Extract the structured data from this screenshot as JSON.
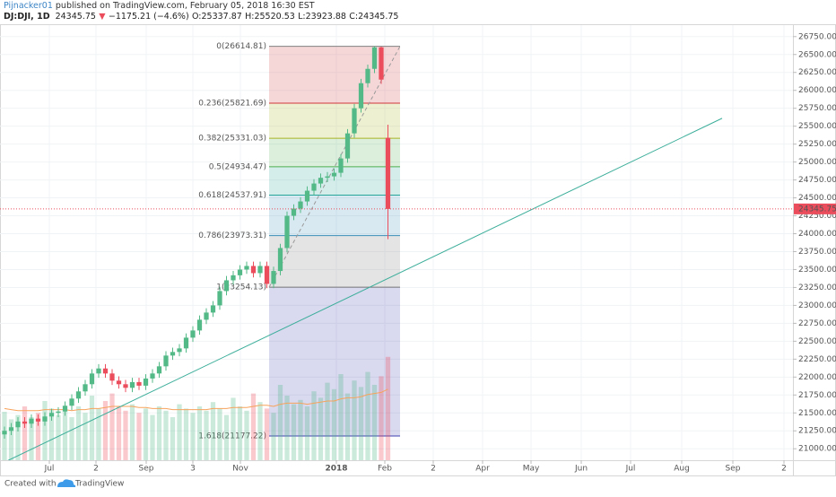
{
  "header": {
    "author": "Pijnacker01",
    "published": "published on TradingView.com, February 05, 2018 16:30 EST",
    "symbol": "DJ:DJI, 1D",
    "last": "24345.75",
    "arrow": "▼",
    "change": "−1175.21 (−4.6%)",
    "ohlc": [
      "O:25337.87",
      "H:25520.53",
      "L:23923.88",
      "C:24345.75"
    ]
  },
  "chart_data": {
    "type": "candlestick",
    "x": [
      0,
      3,
      6,
      9,
      12,
      15,
      18,
      21,
      24,
      27,
      30,
      33,
      36,
      39,
      42,
      45,
      48,
      51,
      54,
      57,
      60,
      63,
      66,
      69,
      72,
      75,
      78,
      81,
      84,
      87,
      90,
      93,
      96,
      99,
      102,
      105,
      108,
      111,
      114,
      117,
      120,
      123,
      126,
      129,
      132,
      135,
      138,
      141,
      144,
      147,
      150,
      153,
      156,
      159,
      162,
      165,
      168,
      171
    ],
    "open": [
      21200,
      21250,
      21300,
      21380,
      21350,
      21420,
      21380,
      21450,
      21500,
      21520,
      21600,
      21700,
      21800,
      21900,
      22050,
      22120,
      22050,
      21950,
      21900,
      21850,
      21930,
      21880,
      21980,
      22050,
      22150,
      22300,
      22350,
      22400,
      22550,
      22650,
      22800,
      22900,
      23000,
      23200,
      23350,
      23420,
      23500,
      23550,
      23450,
      23550,
      23300,
      23480,
      23800,
      24250,
      24350,
      24450,
      24600,
      24700,
      24780,
      24800,
      24850,
      25050,
      25400,
      25750,
      26100,
      26300,
      26600,
      25337.87
    ],
    "high": [
      21310,
      21360,
      21440,
      21440,
      21480,
      21480,
      21510,
      21560,
      21580,
      21660,
      21760,
      21860,
      21960,
      22110,
      22180,
      22180,
      22110,
      22010,
      21960,
      21990,
      21990,
      22040,
      22110,
      22210,
      22360,
      22410,
      22460,
      22610,
      22710,
      22860,
      22960,
      23060,
      23260,
      23410,
      23480,
      23560,
      23610,
      23610,
      23610,
      23610,
      23540,
      23860,
      24310,
      24410,
      24510,
      24660,
      24760,
      24840,
      24860,
      24910,
      25110,
      25460,
      25810,
      26160,
      26360,
      26616,
      26610,
      25520.53
    ],
    "low": [
      21140,
      21190,
      21240,
      21290,
      21290,
      21320,
      21320,
      21390,
      21440,
      21460,
      21540,
      21640,
      21740,
      21840,
      21990,
      21990,
      21890,
      21840,
      21790,
      21790,
      21820,
      21820,
      21920,
      21990,
      22090,
      22240,
      22290,
      22340,
      22490,
      22590,
      22740,
      22840,
      22940,
      23140,
      23290,
      23360,
      23440,
      23390,
      23390,
      23240,
      23240,
      23420,
      23740,
      24190,
      24290,
      24390,
      24540,
      24640,
      24720,
      24740,
      24790,
      24990,
      25340,
      25690,
      26040,
      26240,
      26090,
      23923.88
    ],
    "close": [
      21250,
      21300,
      21380,
      21350,
      21420,
      21380,
      21450,
      21500,
      21520,
      21600,
      21700,
      21800,
      21900,
      22050,
      22120,
      22050,
      21950,
      21900,
      21850,
      21930,
      21880,
      21980,
      22050,
      22150,
      22300,
      22350,
      22400,
      22550,
      22650,
      22800,
      22900,
      23000,
      23200,
      23350,
      23420,
      23500,
      23550,
      23450,
      23550,
      23300,
      23480,
      23800,
      24250,
      24350,
      24450,
      24600,
      24700,
      24780,
      24800,
      24850,
      25050,
      25400,
      25750,
      26100,
      26300,
      26600,
      26150,
      24345.75
    ],
    "volume": [
      45,
      38,
      42,
      50,
      40,
      44,
      55,
      48,
      42,
      46,
      40,
      50,
      44,
      60,
      48,
      55,
      62,
      50,
      46,
      52,
      44,
      48,
      42,
      50,
      46,
      40,
      52,
      48,
      44,
      50,
      46,
      54,
      48,
      42,
      58,
      50,
      46,
      62,
      54,
      48,
      44,
      70,
      60,
      52,
      56,
      50,
      64,
      58,
      72,
      66,
      80,
      62,
      74,
      68,
      82,
      70,
      78,
      96
    ],
    "volume_ma": [
      48,
      47,
      46,
      46,
      46,
      46,
      47,
      47,
      47,
      47,
      46,
      47,
      47,
      48,
      48,
      49,
      50,
      50,
      50,
      50,
      49,
      49,
      48,
      48,
      48,
      47,
      47,
      47,
      47,
      47,
      47,
      48,
      48,
      48,
      49,
      49,
      49,
      50,
      51,
      51,
      50,
      52,
      53,
      53,
      53,
      52,
      53,
      54,
      55,
      55,
      57,
      58,
      58,
      59,
      61,
      62,
      63,
      66
    ],
    "up_color": "#53b987",
    "down_color": "#eb4d5c",
    "ma_color": "#f7a35c",
    "xlim": [
      -2,
      351.6
    ],
    "xticks": [
      {
        "value": 20,
        "label": "Jul"
      },
      {
        "value": 40.8,
        "label": "2"
      },
      {
        "value": 63.2,
        "label": "Sep"
      },
      {
        "value": 84,
        "label": "3"
      },
      {
        "value": 105.2,
        "label": "Nov"
      },
      {
        "value": 148,
        "label": "2018"
      },
      {
        "value": 169.6,
        "label": "Feb"
      },
      {
        "value": 191.2,
        "label": "2"
      },
      {
        "value": 213.2,
        "label": "Apr"
      },
      {
        "value": 234.8,
        "label": "May"
      },
      {
        "value": 257.2,
        "label": "Jun"
      },
      {
        "value": 279.2,
        "label": "Jul"
      },
      {
        "value": 302,
        "label": "Aug"
      },
      {
        "value": 324.8,
        "label": "Sep"
      },
      {
        "value": 347.6,
        "label": "2"
      }
    ],
    "ylim": [
      20840,
      26910
    ],
    "yticks": [
      {
        "value": 21000,
        "label": "21000.00"
      },
      {
        "value": 21250,
        "label": "21250.00"
      },
      {
        "value": 21500,
        "label": "21500.00"
      },
      {
        "value": 21750,
        "label": "21750.00"
      },
      {
        "value": 22000,
        "label": "22000.00"
      },
      {
        "value": 22250,
        "label": "22250.00"
      },
      {
        "value": 22500,
        "label": "22500.00"
      },
      {
        "value": 22750,
        "label": "22750.00"
      },
      {
        "value": 23000,
        "label": "23000.00"
      },
      {
        "value": 23250,
        "label": "23250.00"
      },
      {
        "value": 23500,
        "label": "23500.00"
      },
      {
        "value": 23750,
        "label": "23750.00"
      },
      {
        "value": 24000,
        "label": "24000.00"
      },
      {
        "value": 24250,
        "label": "24250.00"
      },
      {
        "value": 24500,
        "label": "24500.00"
      },
      {
        "value": 24750,
        "label": "24750.00"
      },
      {
        "value": 25000,
        "label": "25000.00"
      },
      {
        "value": 25250,
        "label": "25250.00"
      },
      {
        "value": 25500,
        "label": "25500.00"
      },
      {
        "value": 25750,
        "label": "25750.00"
      },
      {
        "value": 26000,
        "label": "26000.00"
      },
      {
        "value": 26250,
        "label": "26250.00"
      },
      {
        "value": 26500,
        "label": "26500.00"
      },
      {
        "value": 26750,
        "label": "26750.00"
      }
    ],
    "grid": true,
    "fib": {
      "x": [
        118,
        176.4
      ],
      "levels": [
        {
          "price": 26614.81,
          "label": "0(26614.81)",
          "color": "#808080"
        },
        {
          "price": 25821.69,
          "label": "0.236(25821.69)",
          "color": "#d0363c"
        },
        {
          "price": 25331.03,
          "label": "0.382(25331.03)",
          "color": "#a8b420"
        },
        {
          "price": 24934.47,
          "label": "0.5(24934.47)",
          "color": "#4caf50"
        },
        {
          "price": 24537.91,
          "label": "0.618(24537.91)",
          "color": "#26a69a"
        },
        {
          "price": 23973.31,
          "label": "0.786(23973.31)",
          "color": "#3d8fb8"
        },
        {
          "price": 23254.13,
          "label": "1(23254.13)",
          "color": "#787878"
        },
        {
          "price": 21177.22,
          "label": "1.618(21177.22)",
          "color": "#4040b0"
        }
      ]
    },
    "trendline": {
      "x": [
        0,
        320
      ],
      "y": [
        20813,
        25610
      ],
      "color": "#3cae9a"
    },
    "last_color": "#eb4d5c"
  },
  "footer": {
    "created": "Created with",
    "brand": "TradingView"
  }
}
